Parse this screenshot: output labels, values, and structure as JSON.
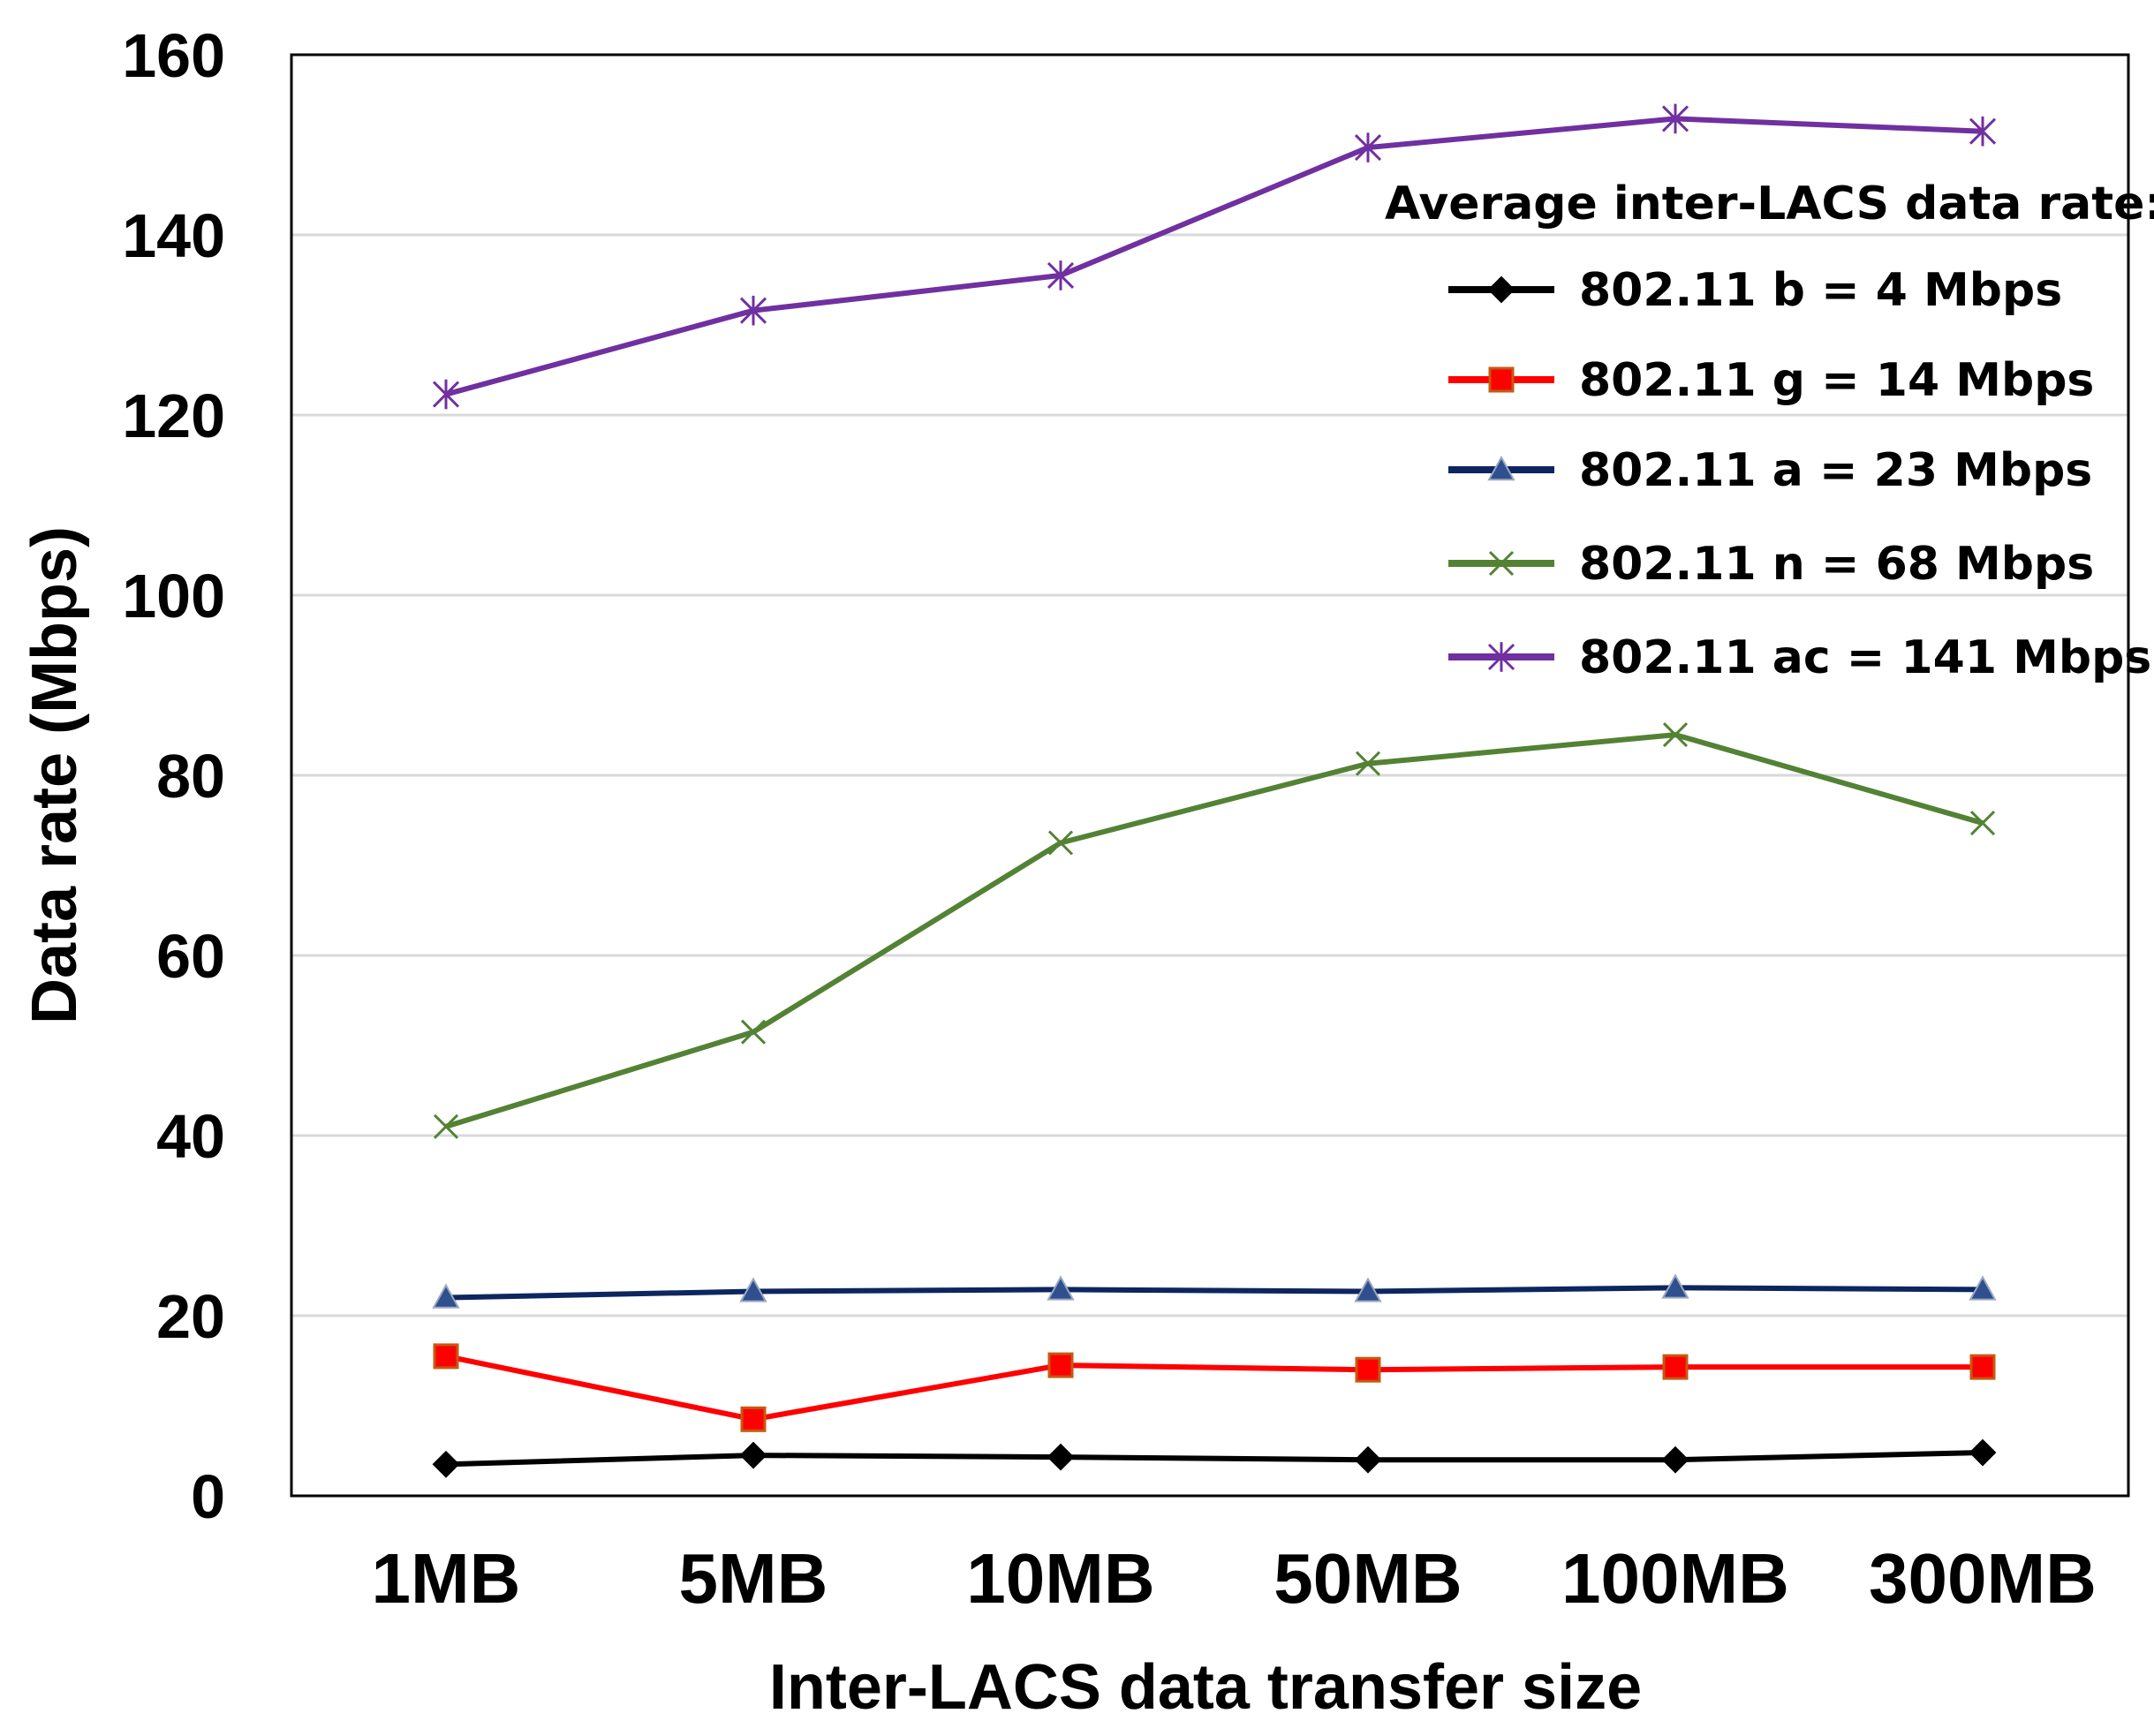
{
  "chart_data": {
    "type": "line",
    "title": "",
    "xlabel": "Inter-LACS data transfer size",
    "ylabel": "Data rate (Mbps)",
    "categories": [
      "1MB",
      "5MB",
      "10MB",
      "50MB",
      "100MB",
      "300MB"
    ],
    "ylim": [
      0,
      160
    ],
    "yticks": [
      0,
      20,
      40,
      60,
      80,
      100,
      120,
      140,
      160
    ],
    "grid": true,
    "legend": {
      "title": "Average inter-LACS data rate:",
      "position": "top-right"
    },
    "series": [
      {
        "name": "802.11 b = 4 Mbps",
        "color": "#000000",
        "marker": "diamond",
        "values": [
          3.5,
          4.5,
          4.3,
          4.0,
          4.0,
          4.8
        ]
      },
      {
        "name": "802.11 g = 14 Mbps",
        "color": "#ff0000",
        "marker": "square",
        "values": [
          15.5,
          8.5,
          14.5,
          14.0,
          14.3,
          14.3
        ]
      },
      {
        "name": "802.11 a = 23 Mbps",
        "color": "#0d2660",
        "marker": "triangle",
        "values": [
          22.0,
          22.7,
          22.9,
          22.7,
          23.1,
          22.9
        ]
      },
      {
        "name": "802.11 n = 68 Mbps",
        "color": "#548235",
        "marker": "x",
        "values": [
          41.0,
          51.5,
          72.5,
          81.3,
          84.5,
          74.7
        ]
      },
      {
        "name": "802.11 ac = 141 Mbps",
        "color": "#7030a0",
        "marker": "star",
        "values": [
          122.3,
          131.6,
          135.5,
          149.7,
          152.9,
          151.5
        ]
      }
    ]
  }
}
